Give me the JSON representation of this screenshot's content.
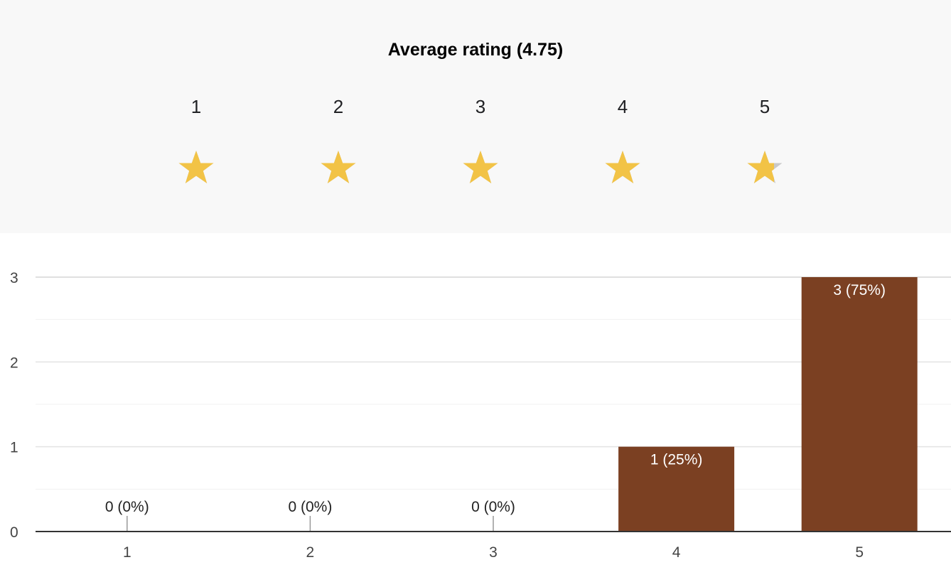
{
  "rating": {
    "title": "Average rating (4.75)",
    "average": 4.75,
    "max": 5,
    "star_labels": [
      "1",
      "2",
      "3",
      "4",
      "5"
    ],
    "star_icon": "star-icon",
    "star_fill_color": "#F2C346",
    "star_empty_color": "#C9C9C9"
  },
  "chart_data": {
    "type": "bar",
    "categories": [
      "1",
      "2",
      "3",
      "4",
      "5"
    ],
    "values": [
      0,
      0,
      0,
      1,
      3
    ],
    "data_labels": [
      "0 (0%)",
      "0 (0%)",
      "0 (0%)",
      "1 (25%)",
      "3 (75%)"
    ],
    "ylim": [
      0,
      3
    ],
    "y_ticks": [
      "0",
      "1",
      "2",
      "3"
    ],
    "grid": true,
    "bar_color": "#7B4022",
    "xlabel": "",
    "ylabel": ""
  }
}
